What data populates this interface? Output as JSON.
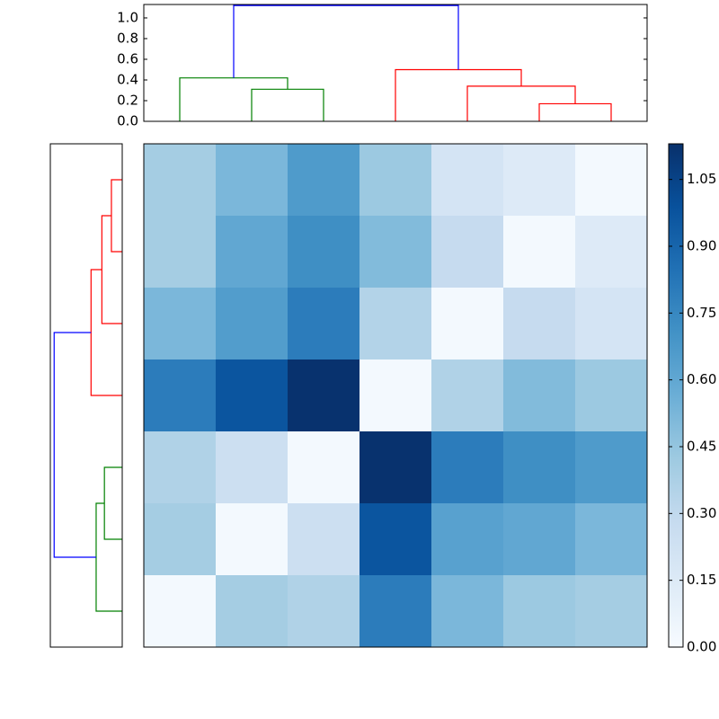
{
  "chart_data": [
    {
      "type": "dendrogram",
      "orientation": "top",
      "links": [
        {
          "color": "#008000",
          "icoord": [
            15,
            15,
            25,
            25
          ],
          "dcoord": [
            0,
            0.31,
            0.31,
            0
          ]
        },
        {
          "color": "#008000",
          "icoord": [
            5,
            5,
            20,
            20
          ],
          "dcoord": [
            0,
            0.42,
            0.42,
            0.31
          ]
        },
        {
          "color": "#ff0000",
          "icoord": [
            55,
            55,
            65,
            65
          ],
          "dcoord": [
            0,
            0.17,
            0.17,
            0
          ]
        },
        {
          "color": "#ff0000",
          "icoord": [
            45,
            45,
            60,
            60
          ],
          "dcoord": [
            0,
            0.34,
            0.34,
            0.17
          ]
        },
        {
          "color": "#ff0000",
          "icoord": [
            35,
            35,
            52.5,
            52.5
          ],
          "dcoord": [
            0,
            0.5,
            0.5,
            0.34
          ]
        },
        {
          "color": "#0000ff",
          "icoord": [
            12.5,
            12.5,
            43.75,
            43.75
          ],
          "dcoord": [
            0.42,
            1.12,
            1.12,
            0.5
          ]
        }
      ],
      "xlim": [
        0,
        70
      ],
      "ylim": [
        0,
        1.13
      ],
      "yticks": [
        {
          "value": 0,
          "label": "0.0"
        },
        {
          "value": 0.2,
          "label": "0.2"
        },
        {
          "value": 0.4,
          "label": "0.4"
        },
        {
          "value": 0.6,
          "label": "0.6"
        },
        {
          "value": 0.8,
          "label": "0.8"
        },
        {
          "value": 1,
          "label": "1.0"
        }
      ]
    },
    {
      "type": "dendrogram",
      "orientation": "left",
      "links": [
        {
          "color": "#ff0000",
          "icoord": [
            55,
            55,
            65,
            65
          ],
          "dcoord": [
            0,
            0.17,
            0.17,
            0
          ]
        },
        {
          "color": "#ff0000",
          "icoord": [
            45,
            45,
            60,
            60
          ],
          "dcoord": [
            0,
            0.32,
            0.32,
            0.17
          ]
        },
        {
          "color": "#ff0000",
          "icoord": [
            35,
            35,
            52.5,
            52.5
          ],
          "dcoord": [
            0,
            0.49,
            0.49,
            0.32
          ]
        },
        {
          "color": "#008000",
          "icoord": [
            15,
            15,
            25,
            25
          ],
          "dcoord": [
            0,
            0.28,
            0.28,
            0
          ]
        },
        {
          "color": "#008000",
          "icoord": [
            5,
            5,
            20,
            20
          ],
          "dcoord": [
            0,
            0.41,
            0.41,
            0.28
          ]
        },
        {
          "color": "#0000ff",
          "icoord": [
            12.5,
            12.5,
            43.75,
            43.75
          ],
          "dcoord": [
            0.41,
            1.07,
            1.07,
            0.49
          ]
        }
      ],
      "xlim": [
        1.13,
        0
      ],
      "ylim": [
        0,
        70
      ]
    },
    {
      "type": "heatmap",
      "colormap": "Blues",
      "values": [
        [
          0.4,
          0.52,
          0.66,
          0.43,
          0.2,
          0.15,
          0.02
        ],
        [
          0.4,
          0.6,
          0.72,
          0.5,
          0.28,
          0.02,
          0.15
        ],
        [
          0.52,
          0.65,
          0.8,
          0.35,
          0.02,
          0.28,
          0.2
        ],
        [
          0.8,
          0.97,
          1.12,
          0.02,
          0.36,
          0.5,
          0.43
        ],
        [
          0.36,
          0.25,
          0.02,
          1.12,
          0.8,
          0.72,
          0.66
        ],
        [
          0.4,
          0.02,
          0.25,
          0.97,
          0.63,
          0.6,
          0.52
        ],
        [
          0.02,
          0.4,
          0.36,
          0.8,
          0.52,
          0.43,
          0.4
        ]
      ],
      "clim": [
        0,
        1.13
      ],
      "cticks": [
        {
          "value": 0,
          "label": "0.00"
        },
        {
          "value": 0.15,
          "label": "0.15"
        },
        {
          "value": 0.3,
          "label": "0.30"
        },
        {
          "value": 0.45,
          "label": "0.45"
        },
        {
          "value": 0.6,
          "label": "0.60"
        },
        {
          "value": 0.75,
          "label": "0.75"
        },
        {
          "value": 0.9,
          "label": "0.90"
        },
        {
          "value": 1.05,
          "label": "1.05"
        }
      ]
    }
  ]
}
